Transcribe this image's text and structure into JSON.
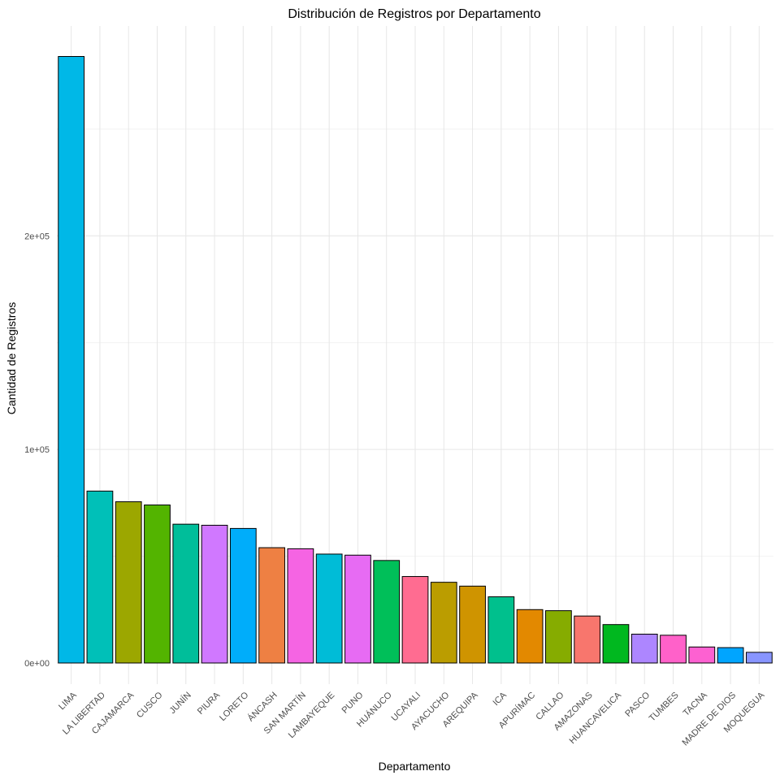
{
  "chart_data": {
    "type": "bar",
    "title": "Distribución de Registros por Departamento",
    "xlabel": "Departamento",
    "ylabel": "Cantidad de Registros",
    "ylim": [
      -10000,
      295000
    ],
    "yticks": [
      0,
      100000,
      200000
    ],
    "ytick_labels": [
      "0e+00",
      "1e+05",
      "2e+05"
    ],
    "grid": true,
    "legend": "none",
    "categories": [
      "LIMA",
      "LA LIBERTAD",
      "CAJAMARCA",
      "CUSCO",
      "JUNÍN",
      "PIURA",
      "LORETO",
      "ÁNCASH",
      "SAN MARTÍN",
      "LAMBAYEQUE",
      "PUNO",
      "HUÁNUCO",
      "UCAYALI",
      "AYACUCHO",
      "AREQUIPA",
      "ICA",
      "APURÍMAC",
      "CALLAO",
      "AMAZONAS",
      "HUANCAVELICA",
      "PASCO",
      "TUMBES",
      "TACNA",
      "MADRE DE DIOS",
      "MOQUEGUA"
    ],
    "values": [
      284000,
      80500,
      75500,
      74000,
      65000,
      64500,
      63000,
      54000,
      53500,
      51000,
      50500,
      48000,
      40500,
      37800,
      36000,
      31000,
      25000,
      24500,
      22000,
      18000,
      13500,
      13000,
      7500,
      7200,
      5000
    ],
    "colors": [
      "#00B8E7",
      "#00C0B8",
      "#9CA700",
      "#53B400",
      "#00BE9A",
      "#D078FF",
      "#00ADFA",
      "#EE8043",
      "#F564E3",
      "#00BCD7",
      "#E76BF3",
      "#00BF59",
      "#FF6C91",
      "#BB9D00",
      "#CF9400",
      "#00C08D",
      "#E38900",
      "#86AC00",
      "#F8766D",
      "#00B81F",
      "#AD86FF",
      "#FF61C9",
      "#FD61D1",
      "#00A5FF",
      "#8895FF"
    ]
  }
}
